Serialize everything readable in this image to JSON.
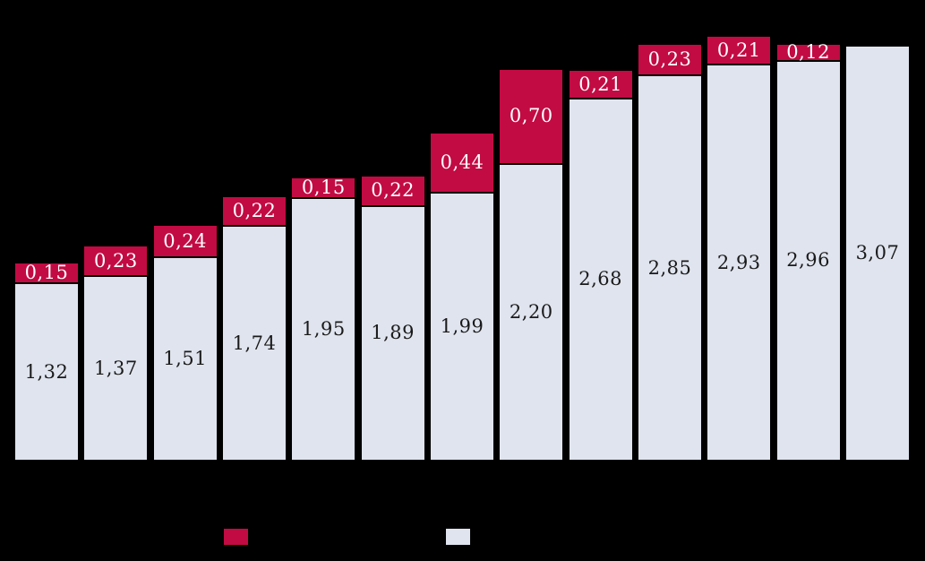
{
  "chart_data": {
    "type": "bar",
    "stacked": true,
    "orientation": "vertical",
    "bar_count": 13,
    "background_color": "#000000",
    "decimal_separator": ",",
    "series": [
      {
        "name": "light-bottom-series",
        "color": "#DFE4EE",
        "label_color": "#1A1A1A",
        "values": [
          1.32,
          1.37,
          1.51,
          1.74,
          1.95,
          1.89,
          1.99,
          2.2,
          2.68,
          2.85,
          2.93,
          2.96,
          3.07
        ],
        "labels": [
          "1,32",
          "1,37",
          "1,51",
          "1,74",
          "1,95",
          "1,89",
          "1,99",
          "2,20",
          "2,68",
          "2,85",
          "2,93",
          "2,96",
          "3,07"
        ]
      },
      {
        "name": "red-top-series",
        "color": "#C20B43",
        "label_color": "#FFFFFF",
        "values": [
          0.15,
          0.23,
          0.24,
          0.22,
          0.15,
          0.22,
          0.44,
          0.7,
          0.21,
          0.23,
          0.21,
          0.12,
          0
        ],
        "labels": [
          "0,15",
          "0,23",
          "0,24",
          "0,22",
          "0,15",
          "0,22",
          "0,44",
          "0,70",
          "0,21",
          "0,23",
          "0,21",
          "0,12",
          ""
        ]
      }
    ],
    "legend": {
      "position": "bottom",
      "swatches": [
        {
          "name": "red-series-swatch",
          "color": "#C20B43"
        },
        {
          "name": "light-series-swatch",
          "color": "#DFE4EE"
        }
      ]
    },
    "axes_visible": false,
    "gridlines": false
  }
}
